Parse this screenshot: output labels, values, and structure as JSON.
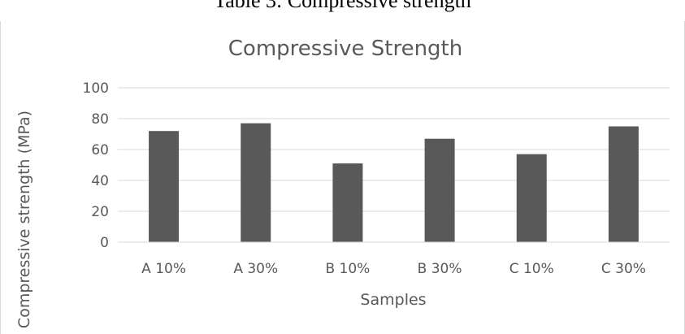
{
  "caption": "Table 3: Compressive strength",
  "chart_data": {
    "type": "bar",
    "title": "Compressive Strength",
    "xlabel": "Samples",
    "ylabel": "Compressive strength (MPa)",
    "categories": [
      "A 10%",
      "A 30%",
      "B 10%",
      "B 30%",
      "C 10%",
      "C 30%"
    ],
    "values": [
      72,
      77,
      51,
      67,
      57,
      75
    ],
    "ylim": [
      0,
      100
    ],
    "yticks": [
      0,
      20,
      40,
      60,
      80,
      100
    ],
    "grid": true,
    "legend": "none",
    "bar_color": "#595959",
    "gridline_color": "#d9d9d9",
    "text_color": "#595959"
  }
}
